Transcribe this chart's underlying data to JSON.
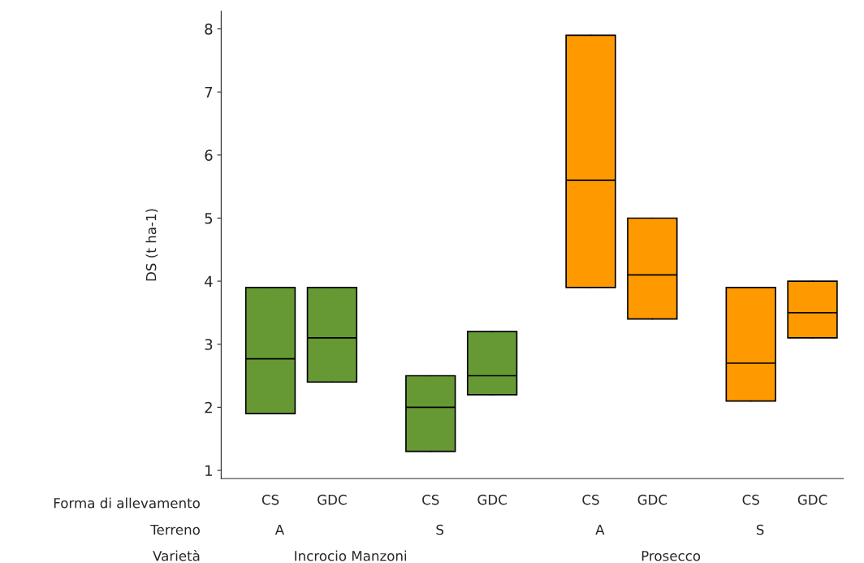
{
  "chart_data": {
    "type": "box",
    "ylabel": "DS (t ha-1)",
    "categories": [
      "CS",
      "GDC",
      "CS",
      "GDC",
      "CS",
      "GDC",
      "CS",
      "GDC"
    ],
    "boxes": [
      {
        "low": 1.9,
        "q1": 1.9,
        "median": 2.77,
        "q3": 3.9,
        "high": 3.9
      },
      {
        "low": 2.4,
        "q1": 2.4,
        "median": 3.1,
        "q3": 3.9,
        "high": 3.9
      },
      {
        "low": 1.3,
        "q1": 1.3,
        "median": 2.0,
        "q3": 2.5,
        "high": 2.5
      },
      {
        "low": 2.2,
        "q1": 2.2,
        "median": 2.5,
        "q3": 3.2,
        "high": 3.2
      },
      {
        "low": 3.9,
        "q1": 3.9,
        "median": 5.6,
        "q3": 7.9,
        "high": 7.9
      },
      {
        "low": 3.4,
        "q1": 3.4,
        "median": 4.1,
        "q3": 5.0,
        "high": 5.0
      },
      {
        "low": 2.1,
        "q1": 2.1,
        "median": 2.7,
        "q3": 3.9,
        "high": 3.9
      },
      {
        "low": 3.1,
        "q1": 3.1,
        "median": 3.5,
        "q3": 4.0,
        "high": 4.0
      }
    ],
    "colors": [
      "#669933",
      "#669933",
      "#669933",
      "#669933",
      "#ff9900",
      "#ff9900",
      "#ff9900",
      "#ff9900"
    ],
    "ylim": [
      0.87,
      8.28
    ],
    "yticks": [
      1,
      2,
      3,
      4,
      5,
      6,
      7,
      8
    ],
    "grid": false,
    "legend": false,
    "annotations": [
      "Forma di allevamento",
      "Terreno",
      "Varietà",
      "A",
      "S",
      "A",
      "S",
      "Incrocio Manzoni",
      "Prosecco"
    ]
  }
}
